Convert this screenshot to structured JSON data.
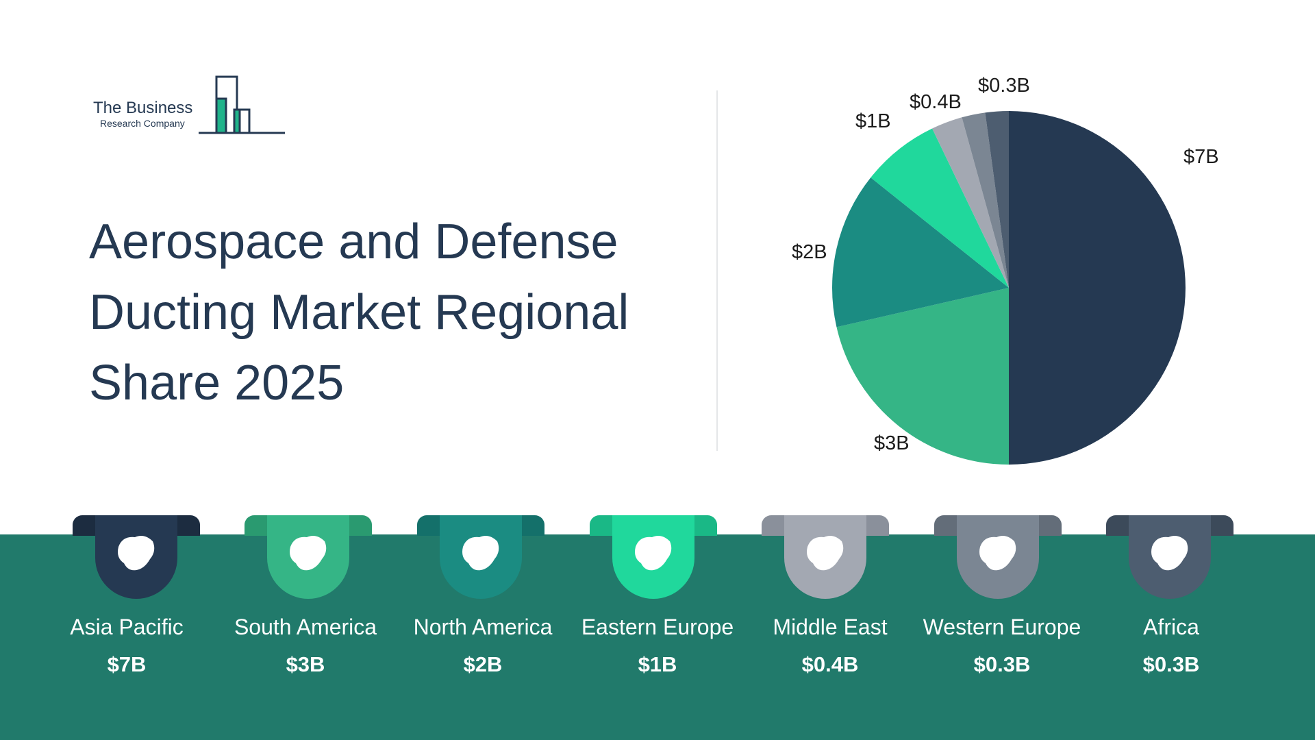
{
  "logo": {
    "line1": "The Business",
    "line2": "Research Company"
  },
  "title": {
    "lines": [
      "Aerospace and Defense",
      "Ducting Market Regional",
      "Share 2025"
    ]
  },
  "chart_data": {
    "type": "pie",
    "title": "Aerospace and Defense Ducting Market Regional Share 2025",
    "slices": [
      {
        "label": "Asia Pacific",
        "value": 7,
        "display": "$7B",
        "color": "#253952"
      },
      {
        "label": "South America",
        "value": 3,
        "display": "$3B",
        "color": "#35b586"
      },
      {
        "label": "North America",
        "value": 2,
        "display": "$2B",
        "color": "#1b8c82"
      },
      {
        "label": "Eastern Europe",
        "value": 1,
        "display": "$1B",
        "color": "#20d89c"
      },
      {
        "label": "Middle East",
        "value": 0.4,
        "display": "$0.4B",
        "color": "#a3a8b2"
      },
      {
        "label": "Western Europe",
        "value": 0.3,
        "display": "$0.3B",
        "color": "#7b8693"
      },
      {
        "label": "Africa",
        "value": 0.3,
        "display": "$0.3B",
        "color": "#4d5d70"
      }
    ]
  },
  "regions": [
    {
      "name": "Asia Pacific",
      "value": "$7B",
      "color": "#253952",
      "wing": "#1c2c40",
      "icon": "asia-map-icon"
    },
    {
      "name": "South America",
      "value": "$3B",
      "color": "#35b586",
      "wing": "#2a9a70",
      "icon": "south-america-map-icon"
    },
    {
      "name": "North America",
      "value": "$2B",
      "color": "#1b8c82",
      "wing": "#14706a",
      "icon": "north-america-map-icon"
    },
    {
      "name": "Eastern Europe",
      "value": "$1B",
      "color": "#20d89c",
      "wing": "#1ab886",
      "icon": "eastern-europe-map-icon"
    },
    {
      "name": "Middle East",
      "value": "$0.4B",
      "color": "#a3a8b2",
      "wing": "#8a909b",
      "icon": "middle-east-map-icon"
    },
    {
      "name": "Western Europe",
      "value": "$0.3B",
      "color": "#7b8693",
      "wing": "#636d79",
      "icon": "western-europe-map-icon"
    },
    {
      "name": "Africa",
      "value": "$0.3B",
      "color": "#4d5d70",
      "wing": "#3c4a5a",
      "icon": "africa-map-icon"
    }
  ]
}
